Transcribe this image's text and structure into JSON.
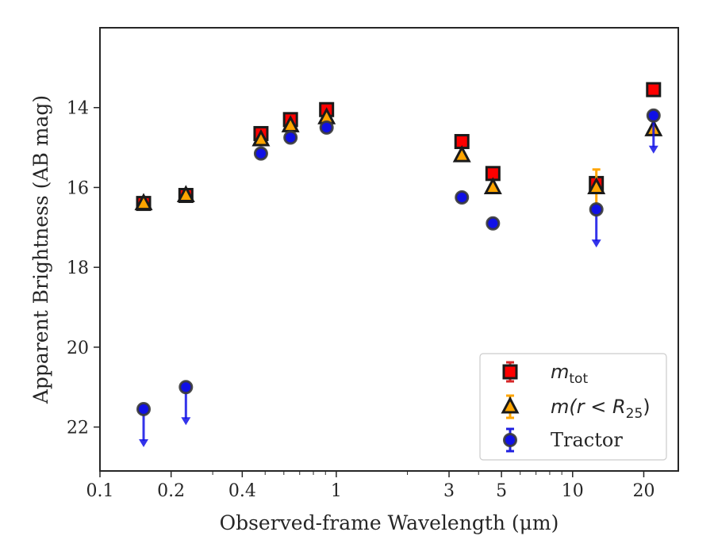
{
  "chart_data": {
    "type": "scatter",
    "xscale": "log",
    "yinverted": true,
    "xlim": [
      0.1,
      28
    ],
    "ylim": [
      12.0,
      23.1
    ],
    "xlabel": "Observed-frame Wavelength (μm)",
    "ylabel": "Apparent Brightness (AB mag)",
    "xticks": [
      {
        "value": 0.1,
        "label": "0.1"
      },
      {
        "value": 0.2,
        "label": "0.2"
      },
      {
        "value": 0.4,
        "label": "0.4"
      },
      {
        "value": 1,
        "label": "1"
      },
      {
        "value": 3,
        "label": "3"
      },
      {
        "value": 5,
        "label": "5"
      },
      {
        "value": 10,
        "label": "10"
      },
      {
        "value": 20,
        "label": "20"
      }
    ],
    "yticks": [
      {
        "value": 14,
        "label": "14"
      },
      {
        "value": 16,
        "label": "16"
      },
      {
        "value": 18,
        "label": "18"
      },
      {
        "value": 20,
        "label": "20"
      },
      {
        "value": 22,
        "label": "22"
      }
    ],
    "legend_position": "lower-right",
    "legend": [
      {
        "series": "m_tot",
        "label_main": "m",
        "label_sub": "tot"
      },
      {
        "series": "m_r25",
        "label_main": "m(r < R",
        "label_sub": "25",
        "label_tail": ")"
      },
      {
        "series": "tractor",
        "label_main": "Tractor"
      }
    ],
    "series": [
      {
        "id": "m_tot",
        "marker": "square",
        "color": "#ff0000",
        "errcolor": "#d62728",
        "x": [
          0.153,
          0.231,
          0.48,
          0.64,
          0.91,
          3.4,
          4.6,
          12.6,
          22.0
        ],
        "y": [
          16.4,
          16.2,
          14.65,
          14.3,
          14.05,
          14.85,
          15.65,
          15.9,
          13.55
        ],
        "yerr": [
          0.05,
          0.05,
          0.05,
          0.05,
          0.05,
          0.05,
          0.05,
          0.15,
          0.05
        ]
      },
      {
        "id": "m_r25",
        "marker": "triangle",
        "color": "#ffa500",
        "errcolor": "#ffa500",
        "x": [
          0.153,
          0.231,
          0.48,
          0.64,
          0.91,
          3.4,
          4.6,
          12.6,
          22.0
        ],
        "y": [
          16.4,
          16.2,
          14.8,
          14.45,
          14.25,
          15.2,
          16.0,
          16.0,
          14.55
        ],
        "yerr": [
          0.05,
          0.05,
          0.05,
          0.05,
          0.05,
          0.05,
          0.05,
          0.45,
          0.05
        ]
      },
      {
        "id": "tractor",
        "marker": "circle",
        "color": "#1010e6",
        "errcolor": "#2020e0",
        "x": [
          0.153,
          0.231,
          0.48,
          0.64,
          0.91,
          3.4,
          4.6,
          12.6,
          22.0
        ],
        "y": [
          21.55,
          21.0,
          15.15,
          14.75,
          14.5,
          16.25,
          16.9,
          16.55,
          14.2
        ],
        "yerr": [
          0.05,
          0.05,
          0.05,
          0.05,
          0.05,
          0.05,
          0.05,
          0.05,
          0.05
        ],
        "upper_limits": [
          true,
          true,
          false,
          false,
          false,
          false,
          false,
          true,
          true
        ]
      }
    ]
  }
}
